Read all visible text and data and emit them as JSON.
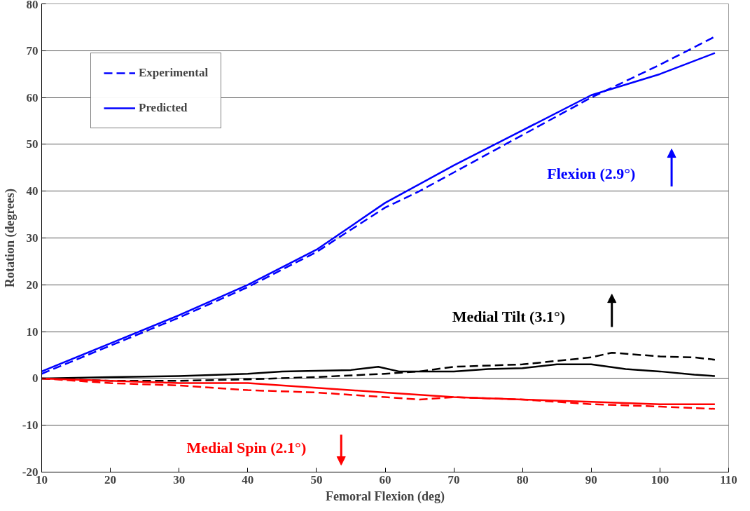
{
  "chart_data": {
    "type": "line",
    "xlabel": "Femoral Flexion (deg)",
    "ylabel": "Rotation (degrees)",
    "xlim": [
      10,
      110
    ],
    "xticks": [
      10,
      20,
      30,
      40,
      50,
      60,
      70,
      80,
      90,
      100,
      110
    ],
    "ylim": [
      -20,
      80
    ],
    "yticks": [
      -20,
      -10,
      0,
      10,
      20,
      30,
      40,
      50,
      60,
      70,
      80
    ],
    "grid": "y",
    "legend": "top left",
    "marker": "none",
    "annotations": [
      "Flexion (2.9°)",
      "Medial Tilt (3.1°)",
      "Medial Spin (2.1°)"
    ],
    "series": [
      {
        "name": "Experimental",
        "color": "#0000ff",
        "line_style": "dashed",
        "x": [
          10,
          20,
          30,
          40,
          50,
          60,
          65,
          70,
          80,
          90,
          100,
          108
        ],
        "values": [
          1,
          7,
          13,
          19.5,
          27,
          36.5,
          40,
          44,
          52,
          60,
          67,
          73
        ]
      },
      {
        "name": "Predicted",
        "color": "#0000ff",
        "line_style": "solid",
        "x": [
          10,
          20,
          30,
          40,
          50,
          60,
          70,
          80,
          90,
          100,
          108
        ],
        "values": [
          1.5,
          7.5,
          13.5,
          20,
          27.5,
          37.5,
          45.5,
          53,
          60.5,
          65,
          69.5
        ]
      },
      {
        "color": "#000000",
        "line_style": "dashed",
        "x": [
          10,
          20,
          30,
          40,
          50,
          60,
          65,
          70,
          80,
          90,
          93,
          100,
          105,
          108
        ],
        "values": [
          0,
          -0.5,
          -0.5,
          -0.2,
          0.3,
          1,
          1.5,
          2.5,
          3,
          4.5,
          5.5,
          4.7,
          4.5,
          4
        ]
      },
      {
        "color": "#000000",
        "line_style": "solid",
        "x": [
          10,
          20,
          30,
          40,
          45,
          55,
          59,
          62,
          70,
          75,
          80,
          85,
          90,
          95,
          100,
          105,
          108
        ],
        "values": [
          0,
          0.3,
          0.5,
          1,
          1.5,
          1.8,
          2.5,
          1.5,
          1.5,
          2,
          2.2,
          3,
          3,
          2,
          1.5,
          0.8,
          0.5
        ]
      },
      {
        "color": "#ff0000",
        "line_style": "dashed",
        "x": [
          10,
          20,
          30,
          40,
          50,
          60,
          65,
          70,
          80,
          90,
          100,
          108
        ],
        "values": [
          0,
          -1,
          -1.5,
          -2.5,
          -3,
          -4,
          -4.5,
          -4,
          -4.5,
          -5.5,
          -6,
          -6.5
        ]
      },
      {
        "color": "#ff0000",
        "line_style": "solid",
        "x": [
          10,
          20,
          30,
          40,
          50,
          60,
          70,
          80,
          90,
          100,
          108
        ],
        "values": [
          0,
          -0.5,
          -1,
          -1,
          -2,
          -3,
          -4,
          -4.5,
          -5,
          -5.5,
          -5.5
        ]
      }
    ]
  }
}
